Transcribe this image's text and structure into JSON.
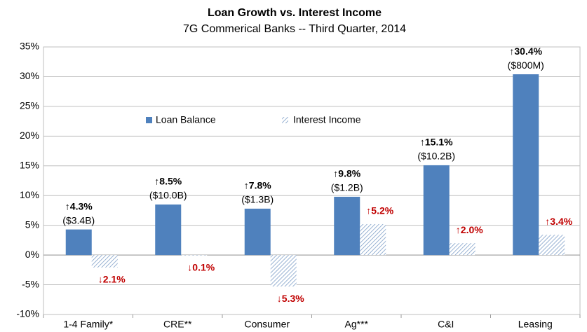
{
  "chart_data": {
    "type": "bar",
    "title": "Loan Growth vs. Interest Income",
    "subtitle": "7G Commerical Banks -- Third Quarter, 2014",
    "categories": [
      "1-4 Family*",
      "CRE**",
      "Consumer",
      "Ag***",
      "C&I",
      "Leasing"
    ],
    "series": [
      {
        "name": "Loan Balance",
        "color": "#4f81bd",
        "pattern": "solid",
        "label_color": "#000000",
        "values": [
          4.3,
          8.5,
          7.8,
          9.8,
          15.1,
          30.4
        ],
        "value_labels": [
          "↑4.3%",
          "↑8.5%",
          "↑7.8%",
          "↑9.8%",
          "↑15.1%",
          "↑30.4%"
        ],
        "amounts": [
          "($3.4B)",
          "($10.0B)",
          "($1.3B)",
          "($1.2B)",
          "($10.2B)",
          "($800M)"
        ]
      },
      {
        "name": "Interest Income",
        "color": "#7f9fc8",
        "pattern": "hatch",
        "label_color": "#c00000",
        "values": [
          -2.1,
          -0.1,
          -5.3,
          5.2,
          2.0,
          3.4
        ],
        "value_labels": [
          "↓2.1%",
          "↓0.1%",
          "↓5.3%",
          "↑5.2%",
          "↑2.0%",
          "↑3.4%"
        ]
      }
    ],
    "ylim": [
      -10,
      35
    ],
    "yticks": [
      {
        "value": -10,
        "label": "-10%"
      },
      {
        "value": -5,
        "label": "-5%"
      },
      {
        "value": 0,
        "label": "0%"
      },
      {
        "value": 5,
        "label": "5%"
      },
      {
        "value": 10,
        "label": "10%"
      },
      {
        "value": 15,
        "label": "15%"
      },
      {
        "value": 20,
        "label": "20%"
      },
      {
        "value": 25,
        "label": "25%"
      },
      {
        "value": 30,
        "label": "30%"
      },
      {
        "value": 35,
        "label": "35%"
      }
    ],
    "grid": true
  }
}
